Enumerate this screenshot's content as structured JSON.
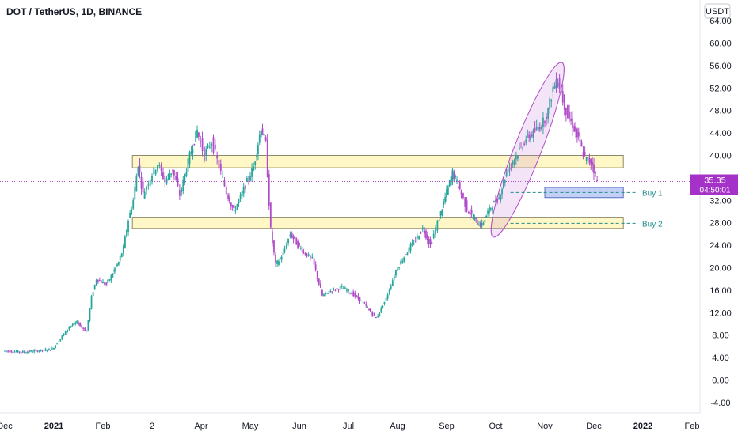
{
  "chart_data": {
    "type": "candlestick",
    "title": "DOT / TetherUS, 1D, BINANCE",
    "currency_label": "USDT",
    "y_ticks": [
      "64.00",
      "60.00",
      "56.00",
      "52.00",
      "48.00",
      "44.00",
      "40.00",
      "36.00",
      "32.00",
      "28.00",
      "24.00",
      "20.00",
      "16.00",
      "12.00",
      "8.00",
      "4.00",
      "0.00",
      "-4.00"
    ],
    "ylim": [
      -4,
      64
    ],
    "x_ticks": [
      {
        "label": "Dec",
        "bold": false
      },
      {
        "label": "2021",
        "bold": true
      },
      {
        "label": "Feb",
        "bold": false
      },
      {
        "label": "2",
        "bold": false
      },
      {
        "label": "Apr",
        "bold": false
      },
      {
        "label": "May",
        "bold": false
      },
      {
        "label": "Jun",
        "bold": false
      },
      {
        "label": "Jul",
        "bold": false
      },
      {
        "label": "Aug",
        "bold": false
      },
      {
        "label": "Sep",
        "bold": false
      },
      {
        "label": "Oct",
        "bold": false
      },
      {
        "label": "Nov",
        "bold": false
      },
      {
        "label": "Dec",
        "bold": false
      },
      {
        "label": "2022",
        "bold": true
      },
      {
        "label": "Feb",
        "bold": false
      }
    ],
    "x_months": [
      -1,
      0,
      1,
      2,
      3,
      4,
      5,
      6,
      7,
      8,
      9,
      10,
      11,
      12,
      13
    ],
    "current_price": "35.35",
    "countdown": "04:50:01",
    "price_path": [
      [
        -1.0,
        5.2
      ],
      [
        -0.6,
        5.0
      ],
      [
        -0.2,
        5.3
      ],
      [
        0.0,
        5.5
      ],
      [
        0.2,
        7.8
      ],
      [
        0.35,
        9.5
      ],
      [
        0.5,
        10.3
      ],
      [
        0.7,
        8.6
      ],
      [
        0.8,
        14.8
      ],
      [
        0.9,
        18.0
      ],
      [
        1.1,
        17.0
      ],
      [
        1.2,
        18.5
      ],
      [
        1.35,
        21.0
      ],
      [
        1.45,
        23.5
      ],
      [
        1.55,
        28.5
      ],
      [
        1.65,
        32.0
      ],
      [
        1.75,
        38.5
      ],
      [
        1.85,
        33.0
      ],
      [
        2.0,
        36.0
      ],
      [
        2.15,
        38.5
      ],
      [
        2.3,
        35.5
      ],
      [
        2.45,
        37.5
      ],
      [
        2.6,
        33.0
      ],
      [
        2.8,
        40.0
      ],
      [
        2.95,
        44.5
      ],
      [
        3.1,
        40.0
      ],
      [
        3.25,
        42.5
      ],
      [
        3.4,
        38.0
      ],
      [
        3.55,
        33.5
      ],
      [
        3.7,
        30.0
      ],
      [
        3.9,
        34.0
      ],
      [
        4.1,
        38.0
      ],
      [
        4.25,
        45.0
      ],
      [
        4.35,
        42.0
      ],
      [
        4.45,
        26.5
      ],
      [
        4.55,
        20.5
      ],
      [
        4.7,
        22.5
      ],
      [
        4.85,
        26.0
      ],
      [
        5.0,
        24.0
      ],
      [
        5.15,
        22.5
      ],
      [
        5.3,
        21.5
      ],
      [
        5.5,
        15.0
      ],
      [
        5.7,
        16.0
      ],
      [
        5.9,
        16.5
      ],
      [
        6.1,
        15.5
      ],
      [
        6.3,
        14.0
      ],
      [
        6.45,
        12.5
      ],
      [
        6.6,
        11.0
      ],
      [
        6.8,
        14.5
      ],
      [
        7.0,
        19.5
      ],
      [
        7.2,
        22.5
      ],
      [
        7.4,
        25.0
      ],
      [
        7.55,
        27.0
      ],
      [
        7.7,
        24.0
      ],
      [
        7.85,
        28.0
      ],
      [
        8.0,
        32.5
      ],
      [
        8.15,
        37.0
      ],
      [
        8.3,
        34.0
      ],
      [
        8.45,
        30.5
      ],
      [
        8.6,
        28.5
      ],
      [
        8.75,
        27.5
      ],
      [
        8.9,
        30.5
      ],
      [
        9.1,
        32.5
      ],
      [
        9.25,
        37.0
      ],
      [
        9.45,
        40.0
      ],
      [
        9.65,
        43.0
      ],
      [
        9.8,
        44.0
      ],
      [
        10.0,
        46.0
      ],
      [
        10.1,
        48.0
      ],
      [
        10.2,
        52.0
      ],
      [
        10.3,
        53.5
      ],
      [
        10.4,
        50.0
      ],
      [
        10.5,
        47.0
      ],
      [
        10.6,
        45.5
      ],
      [
        10.75,
        42.0
      ],
      [
        10.85,
        39.5
      ],
      [
        11.0,
        38.5
      ],
      [
        11.1,
        35.35
      ]
    ],
    "zones": [
      {
        "y_low": 37.8,
        "y_high": 40.0,
        "x_from": 1.6,
        "x_to": 11.6,
        "kind": "resistance"
      },
      {
        "y_low": 27.0,
        "y_high": 29.0,
        "x_from": 1.6,
        "x_to": 11.6,
        "kind": "support"
      },
      {
        "y_low": 32.5,
        "y_high": 34.3,
        "x_from": 10.0,
        "x_to": 11.6,
        "kind": "buy"
      }
    ],
    "annotations": [
      {
        "text": "Buy 1",
        "y": 33.4
      },
      {
        "text": "Buy 2",
        "y": 27.9
      }
    ],
    "ellipse": {
      "from": [
        9.0,
        26.5
      ],
      "to": [
        10.3,
        55.5
      ]
    }
  }
}
